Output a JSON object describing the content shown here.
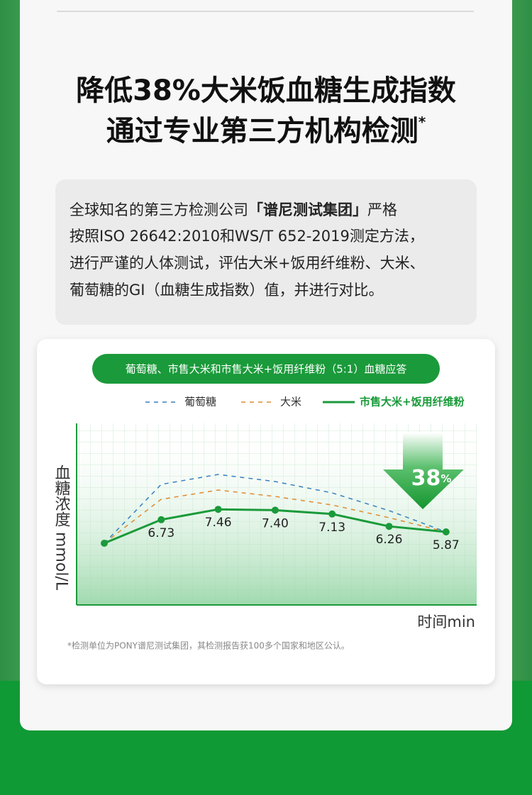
{
  "header": {
    "title_line1": "降低38%大米饭血糖生成指数",
    "title_line2": "通过专业第三方机构检测",
    "title_mark": "*"
  },
  "intro": {
    "line1a": "全球知名的第三方检测公司",
    "line1b": "「谱尼测试集团」",
    "line1c": "严格",
    "line2": "按照ISO 26642:2010和WS/T 652-2019测定方法，",
    "line3": "进行严谨的人体测试，评估大米+饭用纤维粉、大米、",
    "line4": "葡萄糖的GI（血糖生成指数）值，并进行对比。"
  },
  "chart_data": {
    "type": "line",
    "title": "葡萄糖、市售大米和市售大米+饭用纤维粉（5:1）血糖应答",
    "y_label": "血糖浓度 mmol/L",
    "x_label": "时间min",
    "categories": [
      null,
      null,
      null,
      null,
      null,
      null,
      null
    ],
    "ylim": [
      0.72,
      13.52
    ],
    "series": [
      {
        "name": "葡萄糖",
        "color": "#3a7fbf",
        "style": "dashed",
        "values": [
          5.07,
          9.22,
          9.92,
          9.42,
          8.62,
          7.37,
          5.87
        ]
      },
      {
        "name": "大米",
        "color": "#e08a2e",
        "style": "dashed",
        "values": [
          5.07,
          8.17,
          8.82,
          8.37,
          7.77,
          6.87,
          5.87
        ]
      },
      {
        "name": "市售大米+饭用纤维粉",
        "color": "#1a9a3a",
        "style": "solid",
        "values": [
          5.07,
          6.73,
          7.46,
          7.4,
          7.13,
          6.26,
          5.87
        ],
        "value_labels": [
          null,
          "6.73",
          "7.46",
          "7.40",
          "7.13",
          "6.26",
          "5.87"
        ]
      }
    ],
    "annotation": "38",
    "annotation_unit": "%"
  },
  "footnote": "*检测单位为PONY谱尼测试集团，其检测报告获100多个国家和地区公认。"
}
